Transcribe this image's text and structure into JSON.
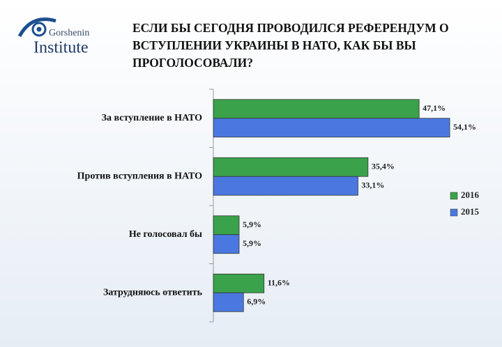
{
  "logo": {
    "name": "Gorshenin",
    "sub": "Institute"
  },
  "chart_data": {
    "type": "bar",
    "orientation": "horizontal",
    "title": "ЕСЛИ БЫ СЕГОДНЯ ПРОВОДИЛСЯ РЕФЕРЕНДУМ О ВСТУПЛЕНИИ УКРАИНЫ В НАТО, КАК БЫ ВЫ ПРОГОЛОСОВАЛИ?",
    "categories": [
      "За вступление в НАТО",
      "Против вступления в НАТО",
      "Не голосовал бы",
      "Затрудняюсь ответить"
    ],
    "series": [
      {
        "name": "2016",
        "color": "#3aa24a",
        "values": [
          47.1,
          35.4,
          5.9,
          11.6
        ],
        "value_labels": [
          "47,1%",
          "35,4%",
          "5,9%",
          "11,6%"
        ]
      },
      {
        "name": "2015",
        "color": "#4a78e0",
        "values": [
          54.1,
          33.1,
          5.9,
          6.9
        ],
        "value_labels": [
          "54,1%",
          "33,1%",
          "5,9%",
          "6,9%"
        ]
      }
    ],
    "xlim": [
      0,
      60
    ],
    "legend": "right"
  }
}
